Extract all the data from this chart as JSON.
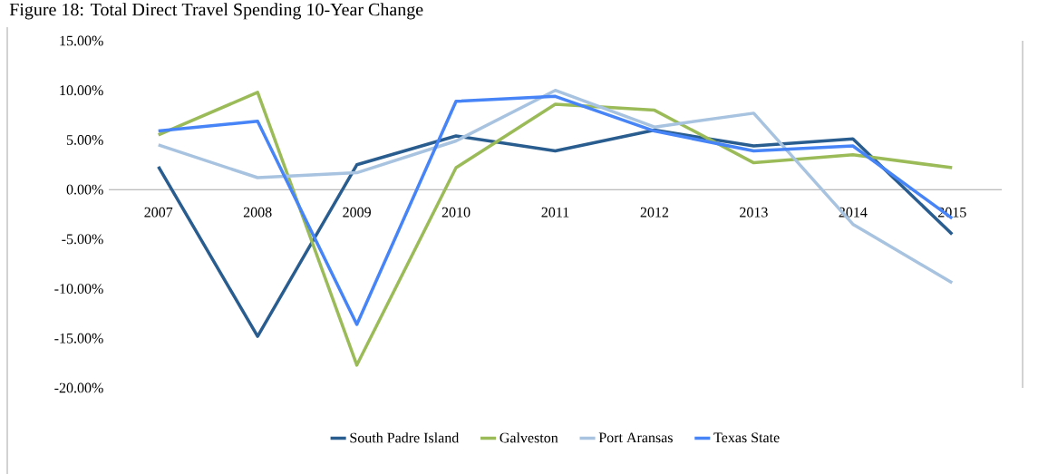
{
  "chart_data": {
    "type": "line",
    "title": "Figure 18: Total Direct Travel Spending 10-Year Change",
    "categories": [
      "2007",
      "2008",
      "2009",
      "2010",
      "2011",
      "2012",
      "2013",
      "2014",
      "2015"
    ],
    "series": [
      {
        "name": "South Padre Island",
        "color": "#2a5d8f",
        "values": [
          2.3,
          -14.8,
          2.5,
          5.4,
          3.9,
          6.0,
          4.4,
          5.1,
          -4.5
        ]
      },
      {
        "name": "Galveston",
        "color": "#9bbb59",
        "values": [
          5.5,
          9.8,
          -17.7,
          2.2,
          8.6,
          8.0,
          2.7,
          3.5,
          2.2
        ]
      },
      {
        "name": "Port Aransas",
        "color": "#a7c3e0",
        "values": [
          4.5,
          1.2,
          1.7,
          4.9,
          10.0,
          6.3,
          7.7,
          -3.5,
          -9.4
        ]
      },
      {
        "name": "Texas State",
        "color": "#4684f7",
        "values": [
          5.9,
          6.9,
          -13.6,
          8.9,
          9.4,
          5.9,
          3.9,
          4.4,
          -2.9
        ]
      }
    ],
    "ylim": [
      -20,
      15
    ],
    "yticks": [
      {
        "value": -20,
        "label": "-20.00%"
      },
      {
        "value": -15,
        "label": "-15.00%"
      },
      {
        "value": -10,
        "label": "-10.00%"
      },
      {
        "value": -5,
        "label": "-5.00%"
      },
      {
        "value": 0,
        "label": "0.00%"
      },
      {
        "value": 5,
        "label": "5.00%"
      },
      {
        "value": 10,
        "label": "10.00%"
      },
      {
        "value": 15,
        "label": "15.00%"
      }
    ],
    "legend": "bottom"
  }
}
